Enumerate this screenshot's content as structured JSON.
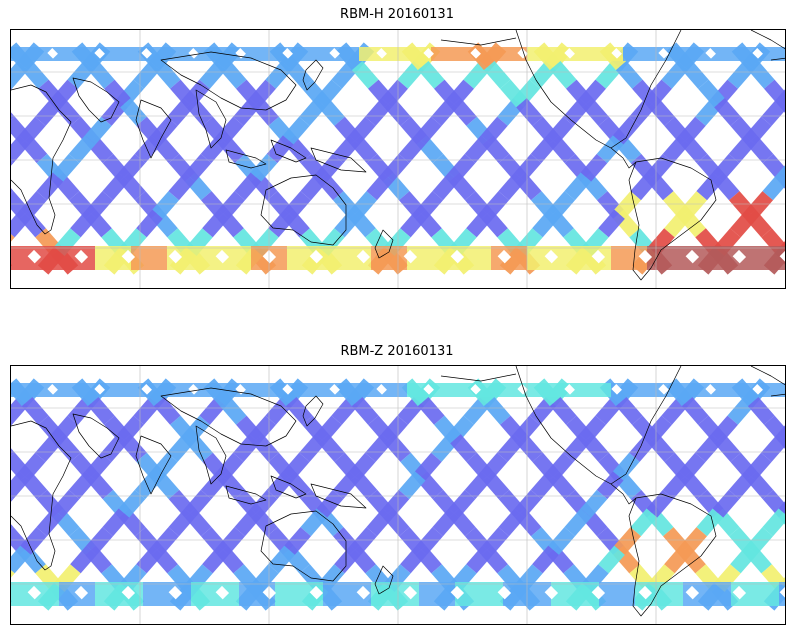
{
  "panels": [
    {
      "title": "RBM-H 20160131",
      "variable": "RBM-H",
      "date": "20160131"
    },
    {
      "title": "RBM-Z 20160131",
      "variable": "RBM-Z",
      "date": "20160131"
    }
  ],
  "colors": {
    "low": "#6b6bf0",
    "mid_low": "#5aa8f5",
    "mid": "#63e6e0",
    "mid_high": "#f2f070",
    "high": "#f59a55",
    "extreme": "#e24b45",
    "max": "#b45a5a"
  },
  "map": {
    "projection": "equirectangular",
    "lon_range": [
      -180,
      180
    ],
    "lat_range": [
      -90,
      90
    ],
    "central_longitude": 150
  }
}
